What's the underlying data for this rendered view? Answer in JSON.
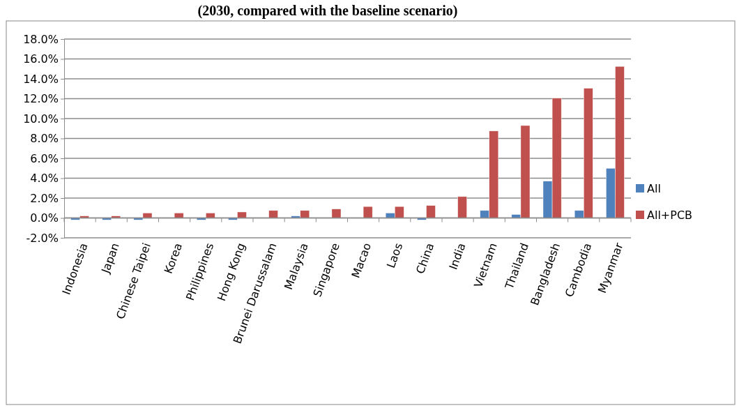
{
  "chart_data": {
    "type": "bar",
    "title": "(2030, compared with the baseline scenario)",
    "categories": [
      "Indonesia",
      "Japan",
      "Chinese Taipei",
      "Korea",
      "Philippines",
      "Hong Kong",
      "Brunei Darussalam",
      "Malaysia",
      "Singapore",
      "Macao",
      "Laos",
      "China",
      "India",
      "Vietnam",
      "Thailand",
      "Bangladesh",
      "Cambodia",
      "Myanmar"
    ],
    "series": [
      {
        "name": "All",
        "color": "#4f81bd",
        "values": [
          -0.2,
          -0.2,
          -0.2,
          0,
          -0.2,
          -0.2,
          0,
          0.2,
          0,
          0,
          0.5,
          -0.2,
          0,
          0.75,
          0.35,
          3.7,
          0.75,
          5.0
        ]
      },
      {
        "name": "All+PCB",
        "color": "#c0504d",
        "values": [
          0.2,
          0.2,
          0.5,
          0.5,
          0.5,
          0.6,
          0.75,
          0.75,
          0.9,
          1.15,
          1.15,
          1.25,
          2.15,
          8.75,
          9.3,
          12.05,
          13.05,
          15.25
        ]
      }
    ],
    "ylim": [
      -2,
      18
    ],
    "yticks": [
      {
        "value": -2,
        "label": "-2.0%"
      },
      {
        "value": 0,
        "label": "0.0%"
      },
      {
        "value": 2,
        "label": "2.0%"
      },
      {
        "value": 4,
        "label": "4.0%"
      },
      {
        "value": 6,
        "label": "6.0%"
      },
      {
        "value": 8,
        "label": "8.0%"
      },
      {
        "value": 10,
        "label": "10.0%"
      },
      {
        "value": 12,
        "label": "12.0%"
      },
      {
        "value": 14,
        "label": "14.0%"
      },
      {
        "value": 16,
        "label": "16.0%"
      },
      {
        "value": 18,
        "label": "18.0%"
      }
    ],
    "grid": "y",
    "legend": "right"
  }
}
